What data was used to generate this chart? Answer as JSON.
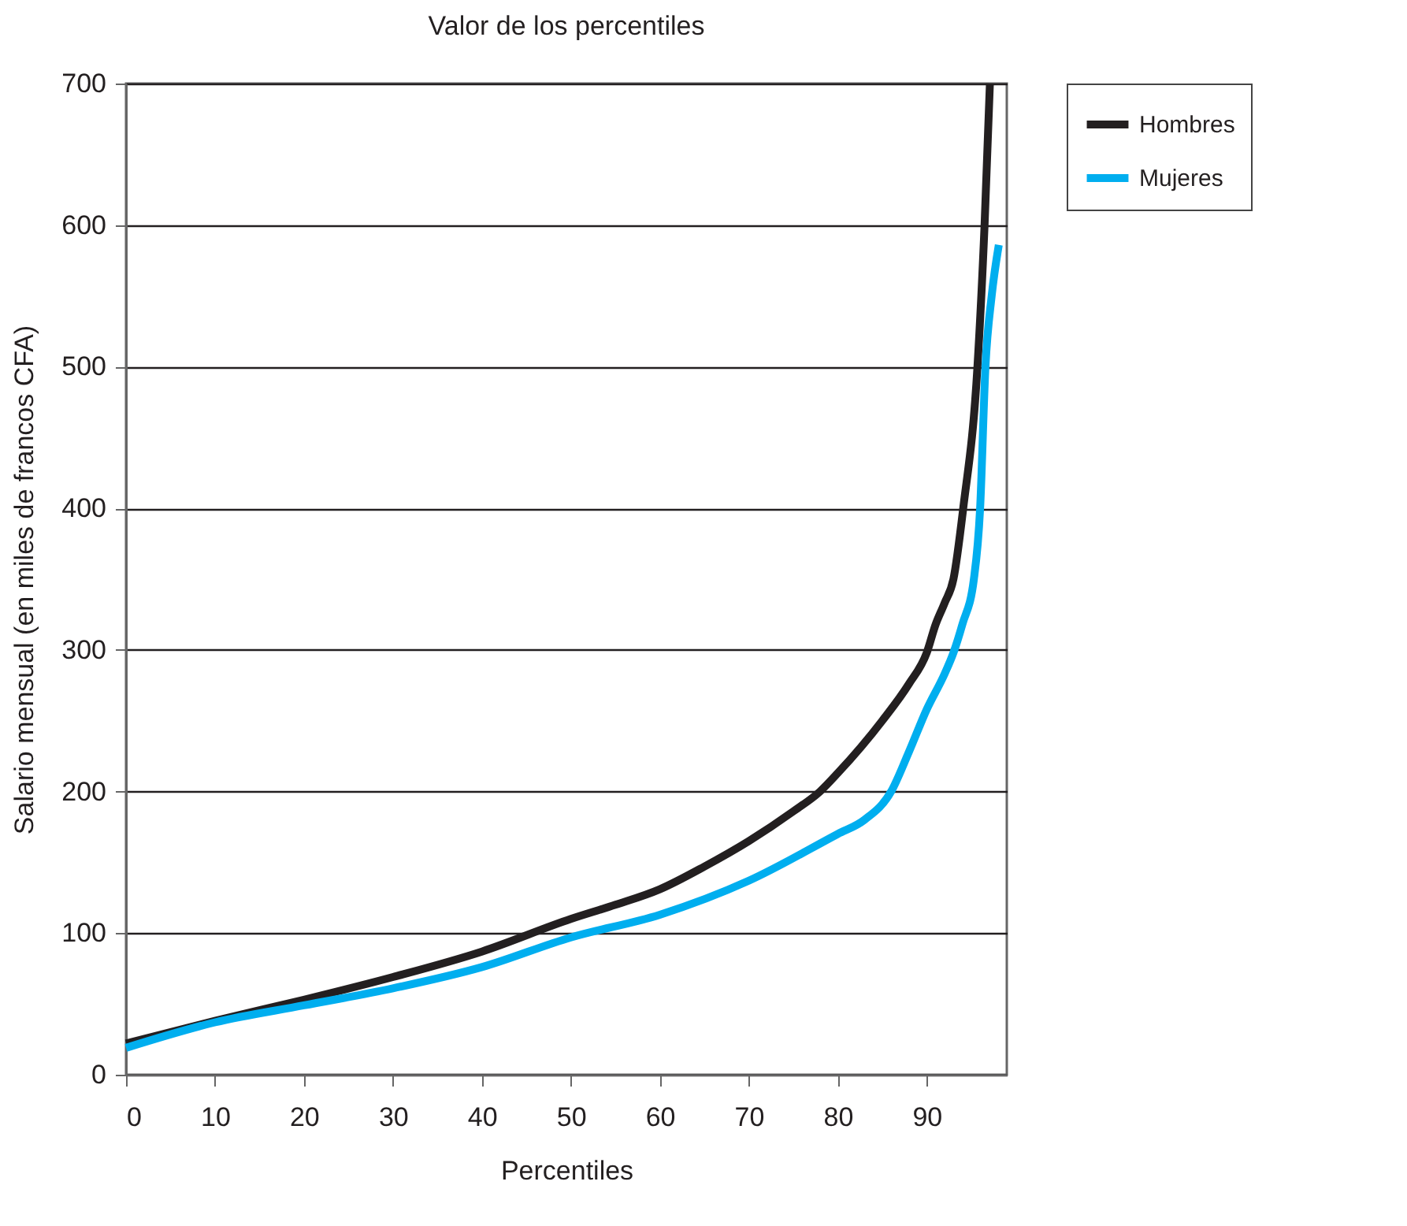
{
  "chart_data": {
    "type": "line",
    "title": "Valor de los percentiles",
    "xlabel": "Percentiles",
    "ylabel": "Salario mensual (en miles de francos CFA)",
    "xlim": [
      0,
      99
    ],
    "xticks": [
      0,
      10,
      20,
      30,
      40,
      50,
      60,
      70,
      80,
      90
    ],
    "ylim": [
      0,
      700
    ],
    "yticks": [
      0,
      100,
      200,
      300,
      400,
      500,
      600,
      700
    ],
    "grid": "y",
    "legend": "top right",
    "line_style": "solid",
    "marker": "none",
    "series": [
      {
        "name": "Hombres",
        "color": "#231f20",
        "x": [
          0,
          10,
          20,
          30,
          40,
          50,
          55,
          60,
          65,
          70,
          75,
          78,
          80,
          85,
          88,
          90,
          91,
          92,
          93,
          94.1,
          95.7,
          96.5,
          97.1
        ],
        "values": [
          22,
          38,
          53,
          69,
          87,
          110,
          120,
          131,
          147,
          165,
          186,
          200,
          213,
          250,
          276,
          298,
          318,
          333,
          350,
          400,
          500,
          600,
          700
        ]
      },
      {
        "name": "Mujeres",
        "color": "#00aeef",
        "x": [
          0,
          10,
          20,
          30,
          40,
          50,
          60,
          70,
          80,
          83,
          86,
          88,
          90,
          92,
          93,
          94,
          95.3,
          96,
          96.6,
          97.3,
          98.1
        ],
        "values": [
          19,
          37,
          49,
          61,
          76,
          97,
          113,
          137,
          170,
          180,
          200,
          228,
          258,
          283,
          298,
          318,
          350,
          400,
          500,
          550,
          586
        ]
      }
    ]
  }
}
